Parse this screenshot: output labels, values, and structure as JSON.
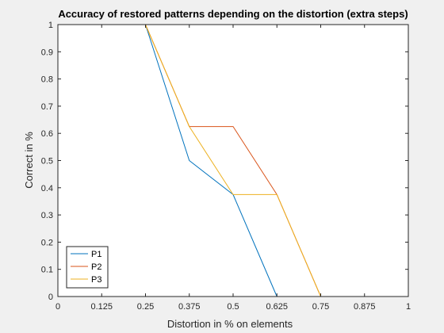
{
  "chart_data": {
    "type": "line",
    "title": "Accuracy of restored patterns depending on the distortion (extra steps)",
    "xlabel": "Distortion in % on elements",
    "ylabel": "Correct in %",
    "xlim": [
      0,
      1
    ],
    "ylim": [
      0,
      1
    ],
    "x_ticks": [
      "0",
      "0.125",
      "0.25",
      "0.375",
      "0.5",
      "0.625",
      "0.75",
      "0.875",
      "1"
    ],
    "y_ticks": [
      "0",
      "0.1",
      "0.2",
      "0.3",
      "0.4",
      "0.5",
      "0.6",
      "0.7",
      "0.8",
      "0.9",
      "1"
    ],
    "grid": false,
    "legend_position": "bottom-left",
    "series": [
      {
        "name": "P1",
        "color": "#0072BD",
        "x": [
          0,
          0.125,
          0.25,
          0.375,
          0.5,
          0.625,
          0.75,
          0.875,
          1
        ],
        "y": [
          1,
          1,
          1,
          0.5,
          0.375,
          0,
          0,
          0,
          0
        ]
      },
      {
        "name": "P2",
        "color": "#D95319",
        "x": [
          0,
          0.125,
          0.25,
          0.375,
          0.5,
          0.625,
          0.75,
          0.875,
          1
        ],
        "y": [
          1,
          1,
          1,
          0.625,
          0.625,
          0.375,
          0,
          0,
          0
        ]
      },
      {
        "name": "P3",
        "color": "#EDB120",
        "x": [
          0,
          0.125,
          0.25,
          0.375,
          0.5,
          0.625,
          0.75,
          0.875,
          1
        ],
        "y": [
          1,
          1,
          1,
          0.625,
          0.375,
          0.375,
          0,
          0,
          0
        ]
      }
    ]
  }
}
